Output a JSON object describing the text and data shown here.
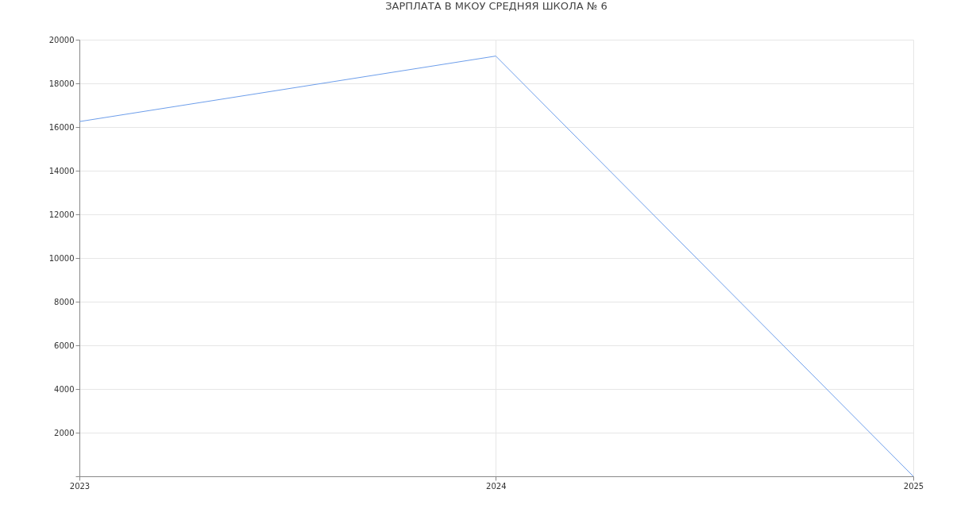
{
  "chart_data": {
    "type": "line",
    "title": "ЗАРПЛАТА В МКОУ СРЕДНЯЯ ШКОЛА № 6",
    "x": [
      "2023",
      "2024",
      "2025"
    ],
    "series": [
      {
        "color": "#6d9eeb",
        "values": [
          16250,
          19250,
          0
        ]
      }
    ],
    "xlim": [
      "2023",
      "2025"
    ],
    "xticks": [
      "2023",
      "2024",
      "2025"
    ],
    "ylim": [
      0,
      20000
    ],
    "yticks": [
      {
        "value": 0,
        "label": null
      },
      2000,
      4000,
      6000,
      8000,
      10000,
      12000,
      14000,
      16000,
      18000,
      20000
    ],
    "grid": true,
    "marker": "none",
    "line_style": "solid"
  }
}
